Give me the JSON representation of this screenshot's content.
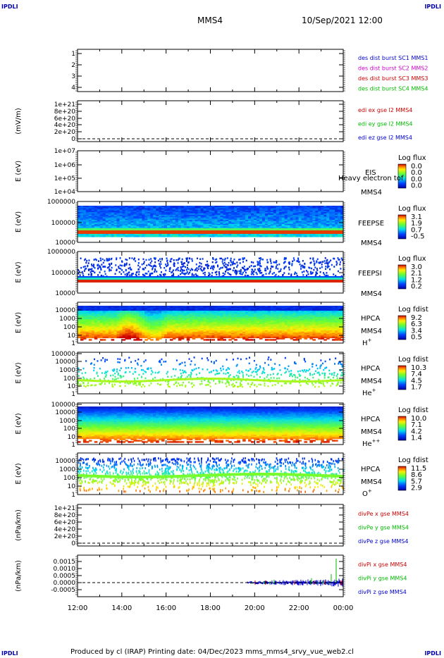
{
  "corner_label": "IPDLI",
  "header": {
    "spacecraft": "MMS4",
    "datetime": "10/Sep/2021 12:00"
  },
  "footer": "Produced by cl (IRAP)   Printing date: 04/Dec/2023   mms_mms4_srvy_vue_web2.cl",
  "chart_data": [
    {
      "id": "p1",
      "type": "line",
      "ylabel": "",
      "ytick_labels": [
        "1",
        "2",
        "3",
        "4"
      ],
      "legend": [
        {
          "text": "des dist burst SC1 MMS1",
          "color": "#0000cc"
        },
        {
          "text": "des dist burst SC2 MMS2",
          "color": "#cc00cc"
        },
        {
          "text": "des dist burst SC3 MMS3",
          "color": "#cc0000"
        },
        {
          "text": "des dist burst SC4 MMS4",
          "color": "#00bb00"
        }
      ],
      "ylim": [
        0.5,
        4.5
      ],
      "series": []
    },
    {
      "id": "p2",
      "type": "line",
      "ylabel": "(mV/m)",
      "ytick_labels": [
        "1e+21",
        "8e+20",
        "6e+20",
        "4e+20",
        "2e+20",
        "0"
      ],
      "ylim": [
        -1e+20,
        1.05e+21
      ],
      "zero_line": true,
      "legend": [
        {
          "text": "edi ex gse l2 MMS4",
          "color": "#cc0000"
        },
        {
          "text": "edi ey gse l2 MMS4",
          "color": "#00bb00"
        },
        {
          "text": "edi ez gse l2 MMS4",
          "color": "#0000cc"
        }
      ],
      "series": []
    },
    {
      "id": "p3",
      "type": "heatmap",
      "ylabel": "E (eV)",
      "ytick_labels": [
        "1e+07",
        "1e+06",
        "1e+05",
        "1e+04"
      ],
      "instrument": "EIS",
      "overlay_text": "Heavy electron tof",
      "sc": "MMS4",
      "cbar_title": "Log flux",
      "cbar_ticks": [
        "0.0",
        "0.0",
        "0.0",
        "0.0"
      ],
      "data": "empty"
    },
    {
      "id": "p4",
      "type": "heatmap",
      "ylabel": "E (eV)",
      "ytick_labels": [
        "1000000",
        "100000",
        "10000"
      ],
      "instrument": "FEEPSE",
      "sc": "MMS4",
      "cbar_title": "Log flux",
      "cbar_ticks": [
        "3.1",
        "1.9",
        "0.7",
        "-0.5"
      ]
    },
    {
      "id": "p5",
      "type": "heatmap",
      "ylabel": "E (eV)",
      "ytick_labels": [
        "1000000",
        "100000",
        "10000"
      ],
      "instrument": "FEEPSI",
      "sc": "MMS4",
      "cbar_title": "Log flux",
      "cbar_ticks": [
        "3.0",
        "2.1",
        "1.2",
        "0.2"
      ]
    },
    {
      "id": "p6",
      "type": "heatmap",
      "ylabel": "E (eV)",
      "ytick_labels": [
        "10000",
        "1000",
        "100",
        "10",
        "1"
      ],
      "instrument": "HPCA",
      "sc": "MMS4",
      "species": "H",
      "species_sup": "+",
      "cbar_title": "Log fdist",
      "cbar_ticks": [
        "9.2",
        "6.3",
        "3.4",
        "0.5"
      ]
    },
    {
      "id": "p7",
      "type": "heatmap",
      "ylabel": "E (eV)",
      "ytick_labels": [
        "100000",
        "10000",
        "1000",
        "100",
        "10",
        "1"
      ],
      "instrument": "HPCA",
      "sc": "MMS4",
      "species": "He",
      "species_sup": "+",
      "cbar_title": "Log fdist",
      "cbar_ticks": [
        "10.3",
        "7.4",
        "4.5",
        "1.7"
      ]
    },
    {
      "id": "p8",
      "type": "heatmap",
      "ylabel": "E (eV)",
      "ytick_labels": [
        "100000",
        "10000",
        "1000",
        "100",
        "10",
        "1"
      ],
      "instrument": "HPCA",
      "sc": "MMS4",
      "species": "He",
      "species_sup": "++",
      "cbar_title": "Log fdist",
      "cbar_ticks": [
        "10.0",
        "7.1",
        "4.2",
        "1.4"
      ]
    },
    {
      "id": "p9",
      "type": "heatmap",
      "ylabel": "E (eV)",
      "ytick_labels": [
        "10000",
        "1000",
        "100",
        "10",
        "1"
      ],
      "instrument": "HPCA",
      "sc": "MMS4",
      "species": "O",
      "species_sup": "+",
      "cbar_title": "Log fdist",
      "cbar_ticks": [
        "11.5",
        "8.6",
        "5.7",
        "2.9"
      ]
    },
    {
      "id": "p10",
      "type": "line",
      "ylabel": "(nPa/km)",
      "ytick_labels": [
        "1e+21",
        "8e+20",
        "6e+20",
        "4e+20",
        "2e+20",
        "0"
      ],
      "zero_line": true,
      "legend": [
        {
          "text": "divPe x gse MMS4",
          "color": "#cc0000"
        },
        {
          "text": "divPe y gse MMS4",
          "color": "#00bb00"
        },
        {
          "text": "divPe z gse MMS4",
          "color": "#0000cc"
        }
      ],
      "series": []
    },
    {
      "id": "p11",
      "type": "line",
      "ylabel": "(nPa/km)",
      "ytick_labels": [
        "0.0015",
        "0.0010",
        "0.0005",
        "0.0000",
        "-0.0005"
      ],
      "ylim": [
        -0.0008,
        0.0018
      ],
      "zero_line": true,
      "legend": [
        {
          "text": "divPi x gse MMS4",
          "color": "#cc0000"
        },
        {
          "text": "divPi y gse MMS4",
          "color": "#00bb00"
        },
        {
          "text": "divPi z gse MMS4",
          "color": "#0000cc"
        }
      ],
      "series": [
        {
          "name": "divPi x gse MMS4",
          "color": "#cc0000"
        },
        {
          "name": "divPi y gse MMS4",
          "color": "#00bb00"
        },
        {
          "name": "divPi z gse MMS4",
          "color": "#0000cc"
        }
      ],
      "data_start": "19:40",
      "data_end": "00:00"
    }
  ],
  "xaxis": {
    "tick_labels": [
      "12:00",
      "14:00",
      "16:00",
      "18:00",
      "20:00",
      "22:00",
      "00:00"
    ],
    "range": [
      "12:00",
      "00:00"
    ]
  }
}
